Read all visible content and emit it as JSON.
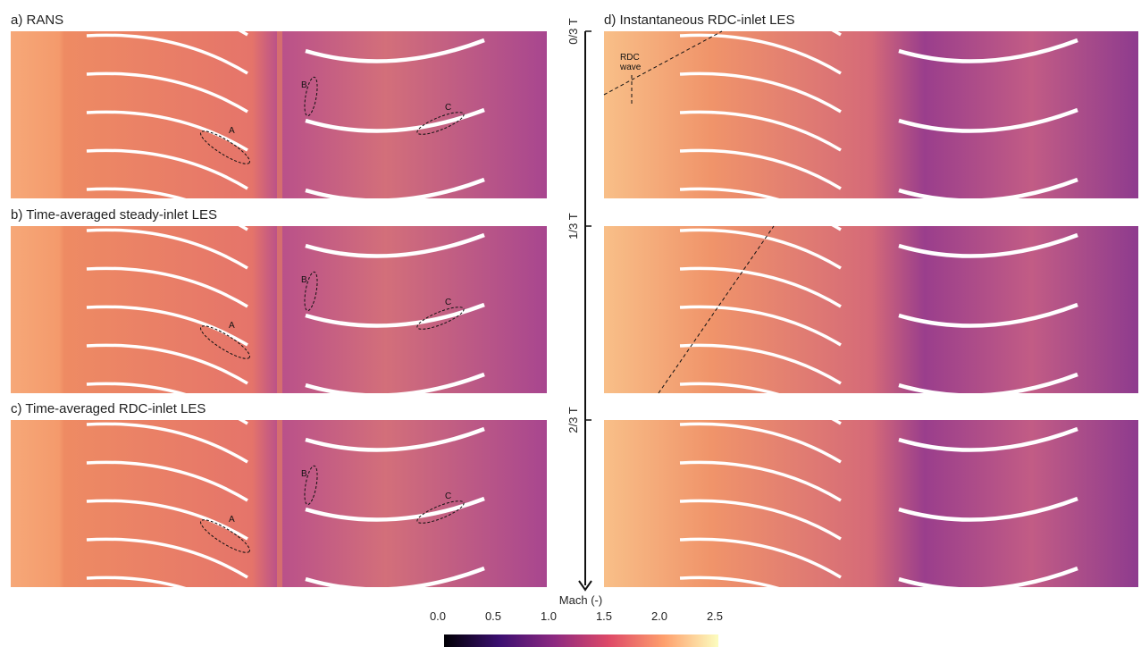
{
  "panels": [
    {
      "label": "a) RANS",
      "annotations": [
        "A",
        "B",
        "C"
      ]
    },
    {
      "label": "b) Time-averaged steady-inlet LES",
      "annotations": [
        "A",
        "B",
        "C"
      ]
    },
    {
      "label": "c) Time-averaged RDC-inlet LES",
      "annotations": [
        "A",
        "B",
        "C"
      ]
    },
    {
      "label": "d) Instantaneous RDC-inlet LES",
      "annotation": [
        "RDC",
        "wave"
      ]
    }
  ],
  "time_axis": [
    "0/3 T",
    "1/3 T",
    "2/3 T"
  ],
  "colorbar": {
    "title": "Mach (-)",
    "ticks": [
      "0.0",
      "0.5",
      "1.0",
      "1.5",
      "2.0",
      "2.5"
    ]
  }
}
